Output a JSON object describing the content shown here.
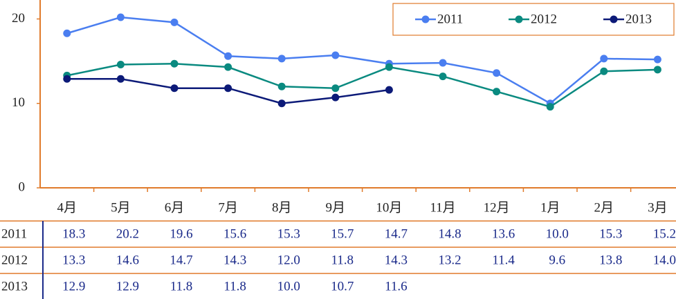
{
  "chart_data": {
    "type": "line",
    "categories": [
      "4月",
      "5月",
      "6月",
      "7月",
      "8月",
      "9月",
      "10月",
      "11月",
      "12月",
      "1月",
      "2月",
      "3月"
    ],
    "series": [
      {
        "name": "2011",
        "color": "#4a7ef0",
        "values": [
          18.3,
          20.2,
          19.6,
          15.6,
          15.3,
          15.7,
          14.7,
          14.8,
          13.6,
          10.0,
          15.3,
          15.2
        ],
        "value_labels": [
          "18.3",
          "20.2",
          "19.6",
          "15.6",
          "15.3",
          "15.7",
          "14.7",
          "14.8",
          "13.6",
          "10.0",
          "15.3",
          "15.2"
        ]
      },
      {
        "name": "2012",
        "color": "#0a8a80",
        "values": [
          13.3,
          14.6,
          14.7,
          14.3,
          12.0,
          11.8,
          14.3,
          13.2,
          11.4,
          9.6,
          13.8,
          14.0
        ],
        "value_labels": [
          "13.3",
          "14.6",
          "14.7",
          "14.3",
          "12.0",
          "11.8",
          "14.3",
          "13.2",
          "11.4",
          "9.6",
          "13.8",
          "14.0"
        ]
      },
      {
        "name": "2013",
        "color": "#0c1a78",
        "values": [
          12.9,
          12.9,
          11.8,
          11.8,
          10.0,
          10.7,
          11.6,
          null,
          null,
          null,
          null,
          null
        ],
        "value_labels": [
          "12.9",
          "12.9",
          "11.8",
          "11.8",
          "10.0",
          "10.7",
          "11.6",
          null,
          null,
          null,
          null,
          null
        ]
      }
    ],
    "ylim": [
      0,
      22
    ],
    "yticks": [
      0,
      10,
      20
    ],
    "grid": false,
    "legend": "top-right",
    "axis_color": "#e07a2a"
  }
}
